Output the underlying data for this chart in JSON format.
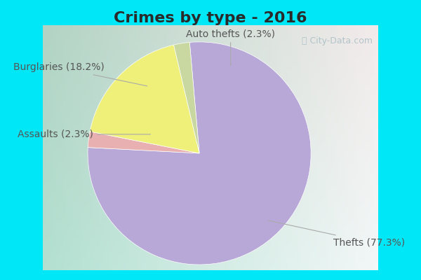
{
  "title": "Crimes by type - 2016",
  "slices": [
    {
      "label": "Thefts (77.3%)",
      "value": 77.3,
      "color": "#b8a8d8"
    },
    {
      "label": "Auto thefts (2.3%)",
      "value": 2.3,
      "color": "#e8b0b0"
    },
    {
      "label": "Burglaries (18.2%)",
      "value": 18.2,
      "color": "#eef07a"
    },
    {
      "label": "Assaults (2.3%)",
      "value": 2.3,
      "color": "#c8d8a0"
    }
  ],
  "title_fontsize": 16,
  "title_color": "#2a2a2a",
  "cyan_color": "#00e8f8",
  "label_fontsize": 10,
  "watermark": "ⓘ City-Data.com",
  "annotation_color": "#555555",
  "annotation_line_color": "#aaaaaa"
}
